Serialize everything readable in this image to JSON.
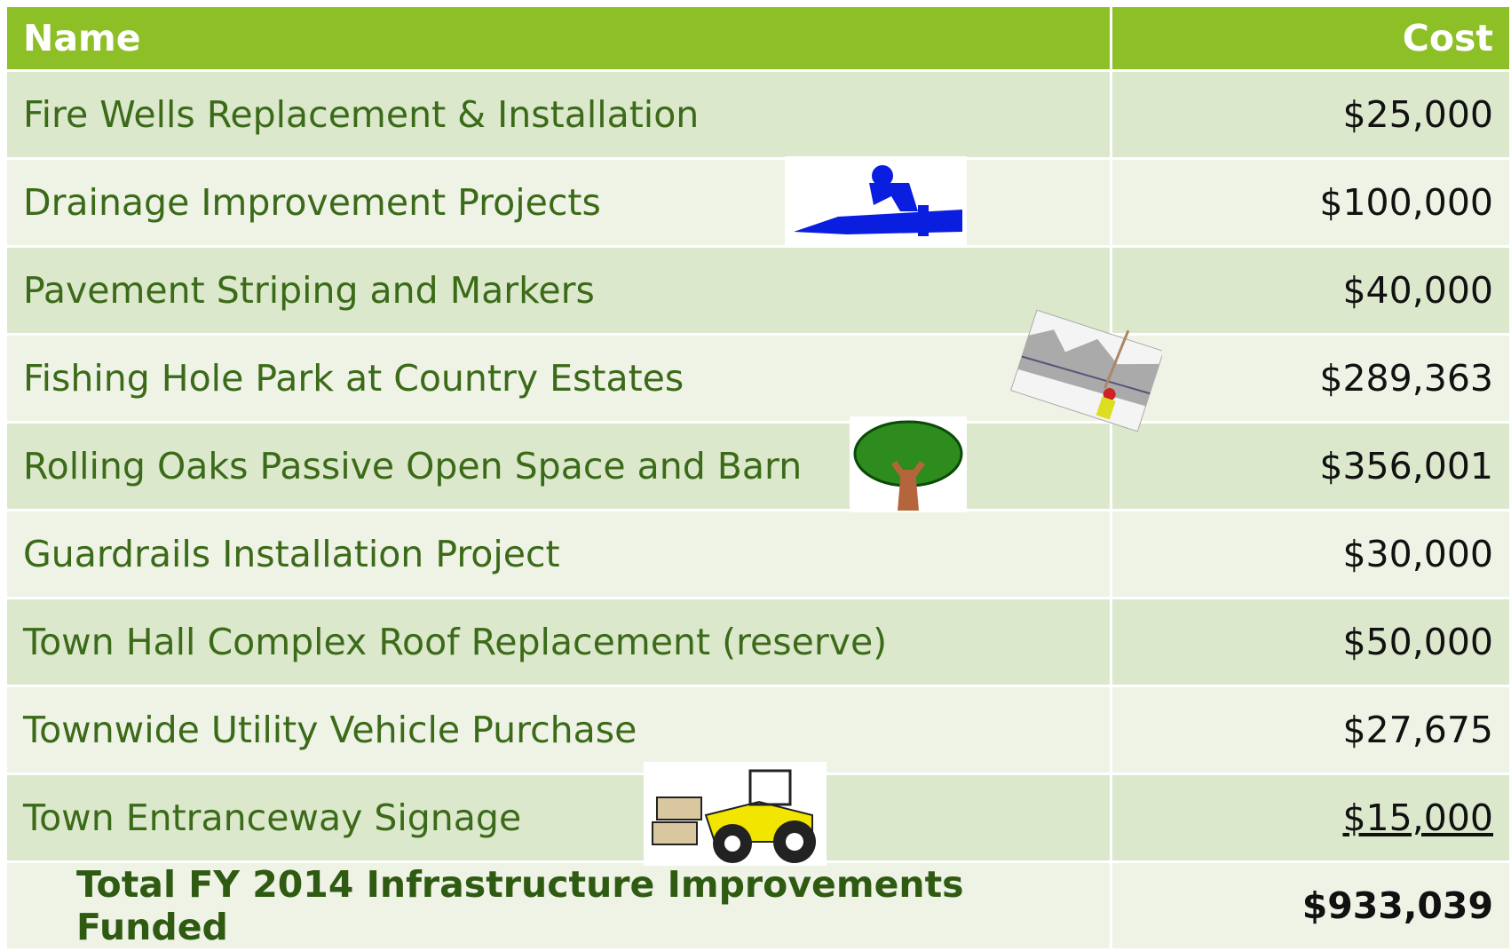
{
  "table": {
    "header": [
      "Name",
      "Cost"
    ],
    "rows": [
      [
        "Fire Wells Replacement & Installation",
        "$25,000"
      ],
      [
        "Drainage Improvement Projects",
        "$100,000"
      ],
      [
        "Pavement Striping and Markers",
        "$40,000"
      ],
      [
        "Fishing Hole Park at Country Estates",
        "$289,363"
      ],
      [
        "Rolling Oaks Passive Open Space and Barn",
        "$356,001"
      ],
      [
        "Guardrails Installation Project",
        "$30,000"
      ],
      [
        "Town Hall Complex Roof Replacement (reserve)",
        "$50,000"
      ],
      [
        "Townwide Utility Vehicle Purchase",
        "$27,675"
      ],
      [
        "Town Entranceway Signage",
        "$15,000"
      ]
    ],
    "total": [
      "Total FY 2014 Infrastructure Improvements Funded",
      "$933,039"
    ]
  }
}
